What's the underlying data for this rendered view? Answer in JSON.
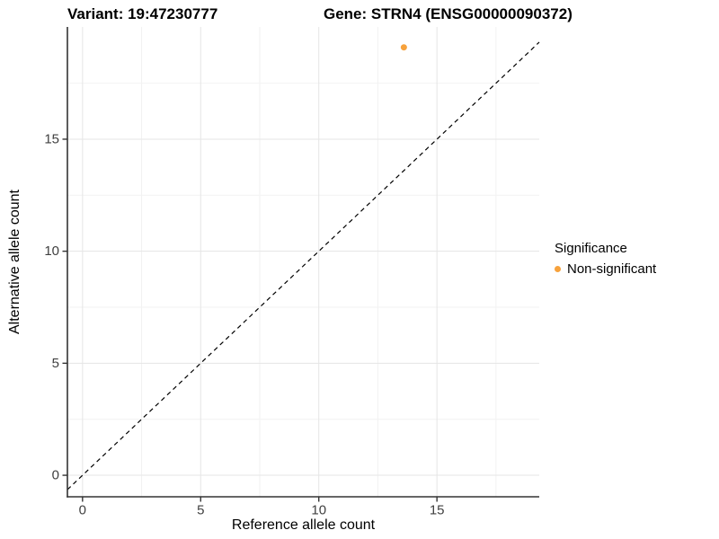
{
  "chart_data": {
    "type": "scatter",
    "title_left": "Variant: 19:47230777",
    "title_right": "Gene: STRN4 (ENSG00000090372)",
    "xlabel": "Reference allele count",
    "ylabel": "Alternative allele count",
    "x_ticks": [
      0,
      5,
      10,
      15
    ],
    "y_ticks": [
      0,
      5,
      10,
      15
    ],
    "x_minor_ticks": [
      2.5,
      7.5,
      12.5,
      17.5
    ],
    "y_minor_ticks": [
      2.5,
      7.5,
      12.5,
      17.5
    ],
    "xlim": [
      -0.64,
      19.33
    ],
    "ylim": [
      -0.96,
      20.01
    ],
    "grid": "major+minor",
    "background": "#FFFFFF",
    "reference_line": {
      "type": "identity",
      "equation": "y = x",
      "style": "dashed",
      "color": "#000000"
    },
    "series": [
      {
        "name": "Non-significant",
        "color": "#F7A23C",
        "points": [
          {
            "x": 13.6,
            "y": 19.1
          }
        ]
      }
    ],
    "legend": {
      "title": "Significance",
      "position": "right",
      "items": [
        {
          "label": "Non-significant",
          "color": "#F7A23C"
        }
      ]
    }
  }
}
